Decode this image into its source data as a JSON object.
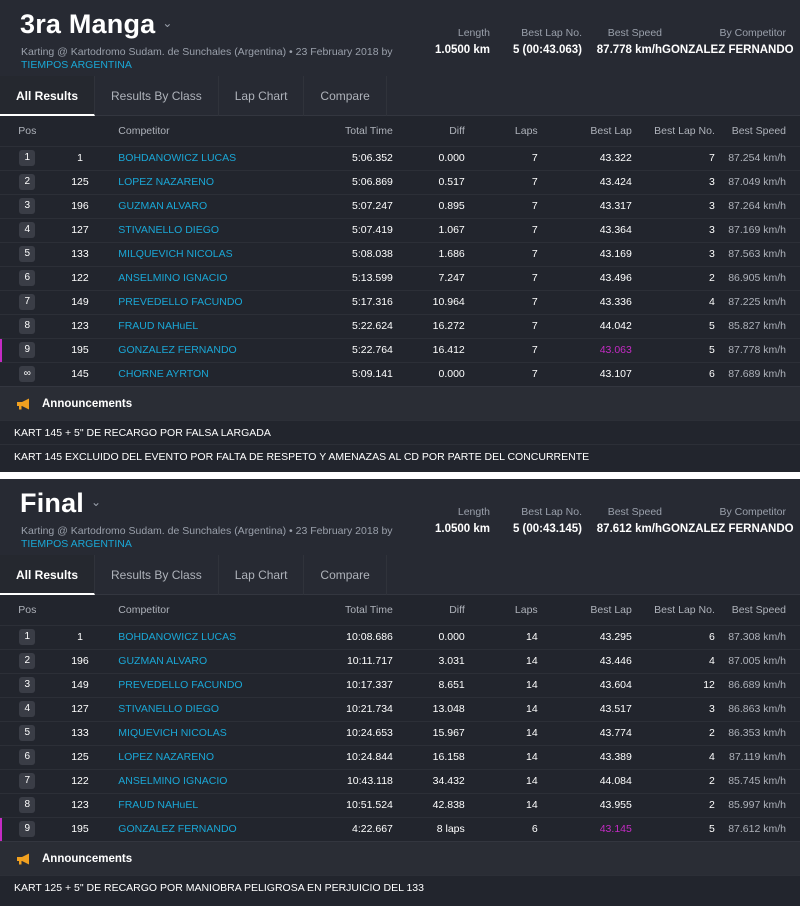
{
  "sessions": [
    {
      "title": "3ra Manga",
      "subtitle": "Karting @ Kartodromo Sudam. de Sunchales (Argentina) • 23 February 2018 by",
      "organizer": "TIEMPOS ARGENTINA",
      "stats": {
        "length_label": "Length",
        "length": "1.0500 km",
        "best_lap_no_label": "Best Lap No.",
        "best_lap_no": "5 (00:43.063)",
        "best_speed_label": "Best Speed",
        "best_speed": "87.778 km/h",
        "by_competitor_label": "By Competitor",
        "by_competitor": "GONZALEZ FERNANDO"
      },
      "tabs": [
        "All Results",
        "Results By Class",
        "Lap Chart",
        "Compare"
      ],
      "columns": [
        "Pos",
        "Competitor",
        "Total Time",
        "Diff",
        "Laps",
        "Best Lap",
        "Best Lap No.",
        "Best Speed"
      ],
      "rows": [
        {
          "pos": "1",
          "num": "1",
          "name": "BOHDANOWICZ LUCAS",
          "total": "5:06.352",
          "diff": "0.000",
          "laps": "7",
          "best": "43.322",
          "bestno": "7",
          "speed": "87.254 km/h"
        },
        {
          "pos": "2",
          "num": "125",
          "name": "LOPEZ NAZARENO",
          "total": "5:06.869",
          "diff": "0.517",
          "laps": "7",
          "best": "43.424",
          "bestno": "3",
          "speed": "87.049 km/h"
        },
        {
          "pos": "3",
          "num": "196",
          "name": "GUZMAN ALVARO",
          "total": "5:07.247",
          "diff": "0.895",
          "laps": "7",
          "best": "43.317",
          "bestno": "3",
          "speed": "87.264 km/h"
        },
        {
          "pos": "4",
          "num": "127",
          "name": "STIVANELLO DIEGO",
          "total": "5:07.419",
          "diff": "1.067",
          "laps": "7",
          "best": "43.364",
          "bestno": "3",
          "speed": "87.169 km/h"
        },
        {
          "pos": "5",
          "num": "133",
          "name": "MILQUEVICH NICOLAS",
          "total": "5:08.038",
          "diff": "1.686",
          "laps": "7",
          "best": "43.169",
          "bestno": "3",
          "speed": "87.563 km/h"
        },
        {
          "pos": "6",
          "num": "122",
          "name": "ANSELMINO IGNACIO",
          "total": "5:13.599",
          "diff": "7.247",
          "laps": "7",
          "best": "43.496",
          "bestno": "2",
          "speed": "86.905 km/h"
        },
        {
          "pos": "7",
          "num": "149",
          "name": "PREVEDELLO FACUNDO",
          "total": "5:17.316",
          "diff": "10.964",
          "laps": "7",
          "best": "43.336",
          "bestno": "4",
          "speed": "87.225 km/h"
        },
        {
          "pos": "8",
          "num": "123",
          "name": "FRAUD NAHuEL",
          "total": "5:22.624",
          "diff": "16.272",
          "laps": "7",
          "best": "44.042",
          "bestno": "5",
          "speed": "85.827 km/h"
        },
        {
          "pos": "9",
          "num": "195",
          "name": "GONZALEZ FERNANDO",
          "total": "5:22.764",
          "diff": "16.412",
          "laps": "7",
          "best": "43.063",
          "bestno": "5",
          "speed": "87.778 km/h",
          "highlight": true
        },
        {
          "pos": "∞",
          "num": "145",
          "name": "CHORNE AYRTON",
          "total": "5:09.141",
          "diff": "0.000",
          "laps": "7",
          "best": "43.107",
          "bestno": "6",
          "speed": "87.689 km/h"
        }
      ],
      "announcements_title": "Announcements",
      "announcements": [
        "KART 145 + 5\" DE RECARGO POR FALSA LARGADA",
        "KART 145 EXCLUIDO DEL EVENTO POR FALTA DE RESPETO Y AMENAZAS AL CD POR PARTE DEL CONCURRENTE"
      ]
    },
    {
      "title": "Final",
      "subtitle": "Karting @ Kartodromo Sudam. de Sunchales (Argentina) • 23 February 2018 by",
      "organizer": "TIEMPOS ARGENTINA",
      "stats": {
        "length_label": "Length",
        "length": "1.0500 km",
        "best_lap_no_label": "Best Lap No.",
        "best_lap_no": "5 (00:43.145)",
        "best_speed_label": "Best Speed",
        "best_speed": "87.612 km/h",
        "by_competitor_label": "By Competitor",
        "by_competitor": "GONZALEZ FERNANDO"
      },
      "tabs": [
        "All Results",
        "Results By Class",
        "Lap Chart",
        "Compare"
      ],
      "columns": [
        "Pos",
        "Competitor",
        "Total Time",
        "Diff",
        "Laps",
        "Best Lap",
        "Best Lap No.",
        "Best Speed"
      ],
      "rows": [
        {
          "pos": "1",
          "num": "1",
          "name": "BOHDANOWICZ LUCAS",
          "total": "10:08.686",
          "diff": "0.000",
          "laps": "14",
          "best": "43.295",
          "bestno": "6",
          "speed": "87.308 km/h"
        },
        {
          "pos": "2",
          "num": "196",
          "name": "GUZMAN ALVARO",
          "total": "10:11.717",
          "diff": "3.031",
          "laps": "14",
          "best": "43.446",
          "bestno": "4",
          "speed": "87.005 km/h"
        },
        {
          "pos": "3",
          "num": "149",
          "name": "PREVEDELLO FACUNDO",
          "total": "10:17.337",
          "diff": "8.651",
          "laps": "14",
          "best": "43.604",
          "bestno": "12",
          "speed": "86.689 km/h"
        },
        {
          "pos": "4",
          "num": "127",
          "name": "STIVANELLO DIEGO",
          "total": "10:21.734",
          "diff": "13.048",
          "laps": "14",
          "best": "43.517",
          "bestno": "3",
          "speed": "86.863 km/h"
        },
        {
          "pos": "5",
          "num": "133",
          "name": "MIQUEVICH NICOLAS",
          "total": "10:24.653",
          "diff": "15.967",
          "laps": "14",
          "best": "43.774",
          "bestno": "2",
          "speed": "86.353 km/h"
        },
        {
          "pos": "6",
          "num": "125",
          "name": "LOPEZ NAZARENO",
          "total": "10:24.844",
          "diff": "16.158",
          "laps": "14",
          "best": "43.389",
          "bestno": "4",
          "speed": "87.119 km/h"
        },
        {
          "pos": "7",
          "num": "122",
          "name": "ANSELMINO IGNACIO",
          "total": "10:43.118",
          "diff": "34.432",
          "laps": "14",
          "best": "44.084",
          "bestno": "2",
          "speed": "85.745 km/h"
        },
        {
          "pos": "8",
          "num": "123",
          "name": "FRAUD NAHuEL",
          "total": "10:51.524",
          "diff": "42.838",
          "laps": "14",
          "best": "43.955",
          "bestno": "2",
          "speed": "85.997 km/h"
        },
        {
          "pos": "9",
          "num": "195",
          "name": "GONZALEZ FERNANDO",
          "total": "4:22.667",
          "diff": "8 laps",
          "laps": "6",
          "best": "43.145",
          "bestno": "5",
          "speed": "87.612 km/h",
          "highlight": true
        }
      ],
      "announcements_title": "Announcements",
      "announcements": [
        "KART 125 + 5\" DE RECARGO POR MANIOBRA PELIGROSA EN PERJUICIO DEL 133"
      ]
    }
  ],
  "colors": {
    "link": "#1aa7d6",
    "best_lap_purple": "#c42bc4",
    "panel_bg": "#22252d",
    "megaphone": "#f0a020"
  },
  "icons": {
    "dropdown": "chevron-down-icon",
    "announcements": "megaphone-icon"
  }
}
